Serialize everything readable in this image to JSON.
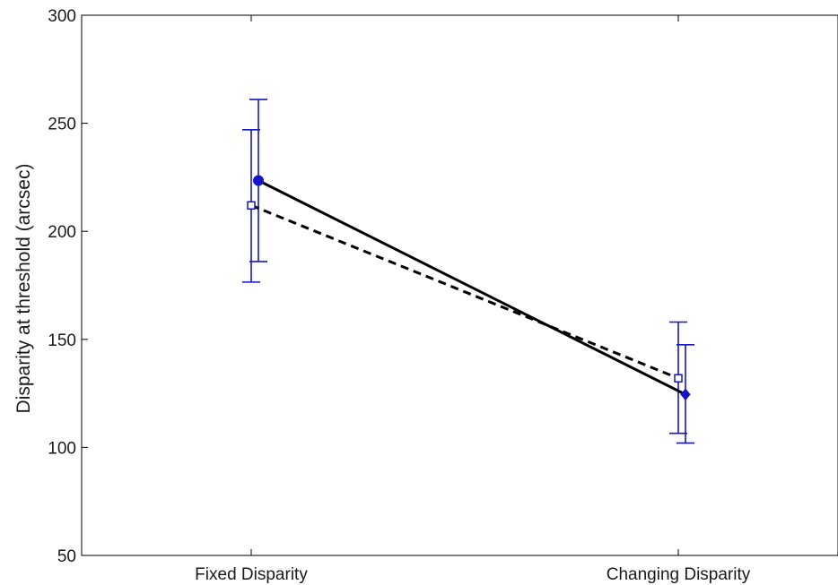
{
  "chart_data": {
    "type": "line",
    "title": "",
    "xlabel": "",
    "ylabel": "Disparity at threshold (arcsec)",
    "categories": [
      "Fixed Disparity",
      "Changing Disparity"
    ],
    "ylim": [
      50,
      300
    ],
    "yticks": [
      50,
      100,
      150,
      200,
      250,
      300
    ],
    "grid": false,
    "series": [
      {
        "style": "solid",
        "marker_first": "filled-circle",
        "marker_last": "filled-diamond",
        "values": [
          223.5,
          124.5
        ],
        "err_low": [
          186,
          102
        ],
        "err_high": [
          261,
          147.5
        ]
      },
      {
        "style": "dashed",
        "marker_first": "open-square",
        "marker_last": "open-square",
        "values": [
          212,
          132
        ],
        "err_low": [
          176.5,
          106.5
        ],
        "err_high": [
          247,
          158
        ]
      }
    ],
    "colors": {
      "line": "#000000",
      "errorbar": "#1515c8",
      "axis": "#000000"
    }
  }
}
